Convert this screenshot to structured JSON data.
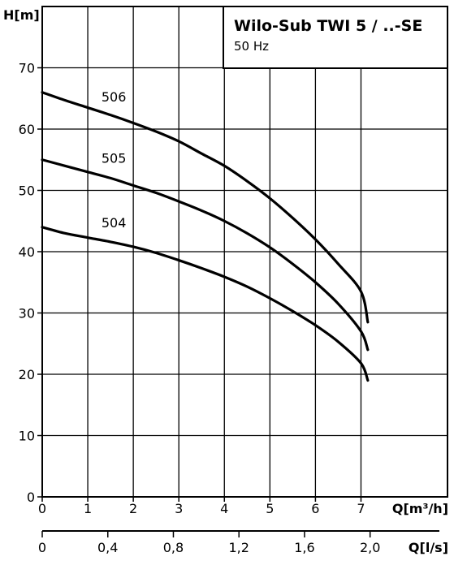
{
  "chart_data": {
    "type": "line",
    "title": "Wilo-Sub TWI 5 / ..-SE",
    "subtitle": "50 Hz",
    "ylabel": "H[m]",
    "xlabel": "Q[m³/h]",
    "x2label": "Q[l/s]",
    "xlim": [
      0,
      8.9
    ],
    "ylim": [
      0,
      80
    ],
    "x_ticks": [
      0,
      1,
      2,
      3,
      4,
      5,
      6,
      7
    ],
    "x_tick_labels": [
      "0",
      "1",
      "2",
      "3",
      "4",
      "5",
      "6",
      "7"
    ],
    "y_ticks": [
      0,
      10,
      20,
      30,
      40,
      50,
      60,
      70
    ],
    "y_tick_labels": [
      "0",
      "10",
      "20",
      "30",
      "40",
      "50",
      "60",
      "70"
    ],
    "x2_ticks": [
      0,
      0.4,
      0.8,
      1.2,
      1.6,
      2.0
    ],
    "x2_tick_labels": [
      "0",
      "0,4",
      "0,8",
      "1,2",
      "1,6",
      "2,0"
    ],
    "x2_factor": 3.6,
    "grid": true,
    "series": [
      {
        "name": "506",
        "label_at": [
          1.3,
          64.5
        ],
        "x": [
          0,
          0.5,
          1,
          1.5,
          2,
          2.5,
          3,
          3.5,
          4,
          4.5,
          5,
          5.5,
          6,
          6.5,
          7,
          7.15
        ],
        "y": [
          66,
          64.7,
          63.5,
          62.3,
          61,
          59.6,
          58,
          56,
          54,
          51.5,
          48.7,
          45.5,
          42,
          38,
          33.5,
          28.5
        ]
      },
      {
        "name": "505",
        "label_at": [
          1.3,
          54.5
        ],
        "x": [
          0,
          0.5,
          1,
          1.5,
          2,
          2.5,
          3,
          3.5,
          4,
          4.5,
          5,
          5.5,
          6,
          6.5,
          7,
          7.15
        ],
        "y": [
          55,
          54,
          53,
          52,
          50.8,
          49.6,
          48.2,
          46.7,
          45,
          43,
          40.7,
          38,
          35,
          31.5,
          27,
          24
        ]
      },
      {
        "name": "504",
        "label_at": [
          1.3,
          44
        ],
        "x": [
          0,
          0.5,
          1,
          1.5,
          2,
          2.5,
          3,
          3.5,
          4,
          4.5,
          5,
          5.5,
          6,
          6.5,
          7,
          7.15
        ],
        "y": [
          44,
          43,
          42.3,
          41.6,
          40.8,
          39.8,
          38.6,
          37.3,
          35.9,
          34.3,
          32.4,
          30.3,
          28,
          25.3,
          21.8,
          19
        ]
      }
    ]
  }
}
